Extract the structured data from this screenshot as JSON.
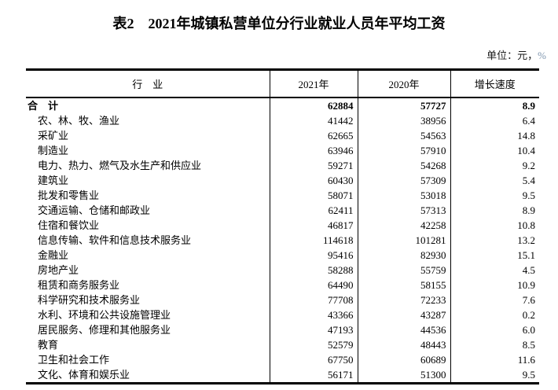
{
  "page": {
    "title": "表2　2021年城镇私营单位分行业就业人员年平均工资",
    "unit_note": {
      "label": "单位：元，",
      "percent": "%"
    }
  },
  "colors": {
    "text": "#000000",
    "table_border": "#000000",
    "percent_sign": "#7e95ae",
    "background": "#ffffff"
  },
  "table": {
    "headers": {
      "industry": "行　业",
      "y2021": "2021年",
      "y2020": "2020年",
      "growth": "增长速度"
    },
    "rows": [
      {
        "is_total": true,
        "industry": "合　计",
        "y2021": "62884",
        "y2020": "57727",
        "growth": "8.9"
      },
      {
        "industry": "农、林、牧、渔业",
        "y2021": "41442",
        "y2020": "38956",
        "growth": "6.4"
      },
      {
        "industry": "采矿业",
        "y2021": "62665",
        "y2020": "54563",
        "growth": "14.8"
      },
      {
        "industry": "制造业",
        "y2021": "63946",
        "y2020": "57910",
        "growth": "10.4"
      },
      {
        "industry": "电力、热力、燃气及水生产和供应业",
        "y2021": "59271",
        "y2020": "54268",
        "growth": "9.2"
      },
      {
        "industry": "建筑业",
        "y2021": "60430",
        "y2020": "57309",
        "growth": "5.4"
      },
      {
        "industry": "批发和零售业",
        "y2021": "58071",
        "y2020": "53018",
        "growth": "9.5"
      },
      {
        "industry": "交通运输、仓储和邮政业",
        "y2021": "62411",
        "y2020": "57313",
        "growth": "8.9"
      },
      {
        "industry": "住宿和餐饮业",
        "y2021": "46817",
        "y2020": "42258",
        "growth": "10.8"
      },
      {
        "industry": "信息传输、软件和信息技术服务业",
        "y2021": "114618",
        "y2020": "101281",
        "growth": "13.2"
      },
      {
        "industry": "金融业",
        "y2021": "95416",
        "y2020": "82930",
        "growth": "15.1"
      },
      {
        "industry": "房地产业",
        "y2021": "58288",
        "y2020": "55759",
        "growth": "4.5"
      },
      {
        "industry": "租赁和商务服务业",
        "y2021": "64490",
        "y2020": "58155",
        "growth": "10.9"
      },
      {
        "industry": "科学研究和技术服务业",
        "y2021": "77708",
        "y2020": "72233",
        "growth": "7.6"
      },
      {
        "industry": "水利、环境和公共设施管理业",
        "y2021": "43366",
        "y2020": "43287",
        "growth": "0.2"
      },
      {
        "industry": "居民服务、修理和其他服务业",
        "y2021": "47193",
        "y2020": "44536",
        "growth": "6.0"
      },
      {
        "industry": "教育",
        "y2021": "52579",
        "y2020": "48443",
        "growth": "8.5"
      },
      {
        "industry": "卫生和社会工作",
        "y2021": "67750",
        "y2020": "60689",
        "growth": "11.6"
      },
      {
        "industry": "文化、体育和娱乐业",
        "y2021": "56171",
        "y2020": "51300",
        "growth": "9.5"
      }
    ]
  }
}
